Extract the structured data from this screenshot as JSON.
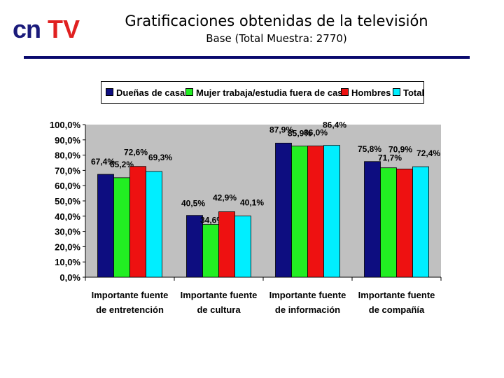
{
  "header": {
    "logo_text": "cnTV",
    "title": "Gratificaciones obtenidas de la televisión",
    "subtitle": "Base (Total Muestra: 2770)"
  },
  "colors": {
    "rule": "#0a0a6e",
    "plot_bg": "#c0c0c0",
    "logo_dark": "#1a1a7a",
    "logo_red": "#e02020"
  },
  "chart_data": {
    "type": "bar",
    "title": "",
    "xlabel": "",
    "ylabel": "",
    "ylim": [
      0,
      100
    ],
    "yticks": [
      "0,0%",
      "10,0%",
      "20,0%",
      "30,0%",
      "40,0%",
      "50,0%",
      "60,0%",
      "70,0%",
      "80,0%",
      "90,0%",
      "100,0%"
    ],
    "grid": false,
    "legend_position": "top",
    "categories": [
      [
        "Importante fuente",
        "de entretención"
      ],
      [
        "Importante fuente",
        "de cultura"
      ],
      [
        "Importante fuente",
        "de información"
      ],
      [
        "Importante fuente",
        "de compañía"
      ]
    ],
    "series": [
      {
        "name": "Dueñas de casa",
        "color": "#0d0d80",
        "values": [
          67.4,
          40.5,
          87.9,
          75.8
        ],
        "labels": [
          "67,4%",
          "40,5%",
          "87,9%",
          "75,8%"
        ]
      },
      {
        "name": "Mujer trabaja/estudia fuera de casa",
        "color": "#22ee22",
        "values": [
          65.2,
          34.6,
          85.9,
          71.7
        ],
        "labels": [
          "65,2%",
          "34,6%",
          "85,9%",
          "71,7%"
        ]
      },
      {
        "name": "Hombres",
        "color": "#ee1111",
        "values": [
          72.6,
          42.9,
          86.0,
          70.9
        ],
        "labels": [
          "72,6%",
          "42,9%",
          "86,0%",
          "70,9%"
        ]
      },
      {
        "name": "Total",
        "color": "#00eeff",
        "values": [
          69.3,
          40.1,
          86.4,
          72.4
        ],
        "labels": [
          "69,3%",
          "40,1%",
          "86,4%",
          "72,4%"
        ]
      }
    ]
  }
}
